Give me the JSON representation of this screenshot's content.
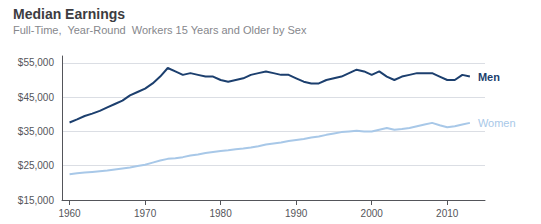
{
  "chart_data": {
    "type": "line",
    "title": "Median Earnings",
    "subtitle": "Full-Time,  Year-Round  Workers 15 Years and Older by Sex",
    "x": [
      1960,
      1961,
      1962,
      1963,
      1964,
      1965,
      1966,
      1967,
      1968,
      1969,
      1970,
      1971,
      1972,
      1973,
      1974,
      1975,
      1976,
      1977,
      1978,
      1979,
      1980,
      1981,
      1982,
      1983,
      1984,
      1985,
      1986,
      1987,
      1988,
      1989,
      1990,
      1991,
      1992,
      1993,
      1994,
      1995,
      1996,
      1997,
      1998,
      1999,
      2000,
      2001,
      2002,
      2003,
      2004,
      2005,
      2006,
      2007,
      2008,
      2009,
      2010,
      2011,
      2012,
      2013
    ],
    "series": [
      {
        "name": "Men",
        "color": "#1c3f6e",
        "values": [
          37600,
          38500,
          39500,
          40200,
          41000,
          42000,
          43000,
          44000,
          45500,
          46500,
          47500,
          49000,
          51000,
          53500,
          52500,
          51500,
          52000,
          51500,
          51000,
          51000,
          50000,
          49500,
          50000,
          50500,
          51500,
          52000,
          52500,
          52000,
          51500,
          51500,
          50500,
          49500,
          49000,
          49000,
          50000,
          50500,
          51000,
          52000,
          53000,
          52500,
          51500,
          52500,
          51000,
          50000,
          51000,
          51500,
          52000,
          52000,
          52000,
          51000,
          50000,
          50000,
          51500,
          51000
        ]
      },
      {
        "name": "Women",
        "color": "#a8c8e8",
        "values": [
          22500,
          22800,
          23000,
          23200,
          23400,
          23600,
          23900,
          24200,
          24500,
          24900,
          25300,
          25900,
          26500,
          27000,
          27200,
          27500,
          28000,
          28300,
          28700,
          29000,
          29300,
          29500,
          29800,
          30000,
          30300,
          30700,
          31200,
          31500,
          31800,
          32200,
          32500,
          32800,
          33200,
          33500,
          34000,
          34400,
          34800,
          35000,
          35200,
          35000,
          35000,
          35500,
          36000,
          35500,
          35700,
          36000,
          36500,
          37000,
          37500,
          36800,
          36200,
          36500,
          37000,
          37500
        ]
      }
    ],
    "xlim": [
      1959,
      2015
    ],
    "xticks": [
      1960,
      1970,
      1980,
      1990,
      2000,
      2010
    ],
    "ylim": [
      15000,
      57000
    ],
    "yticks": [
      {
        "value": 15000,
        "label": "$15,000"
      },
      {
        "value": 25000,
        "label": "$25,000"
      },
      {
        "value": 35000,
        "label": "$35,000"
      },
      {
        "value": 45000,
        "label": "$45,000"
      },
      {
        "value": 55000,
        "label": "$55,000"
      }
    ],
    "grid": true
  }
}
